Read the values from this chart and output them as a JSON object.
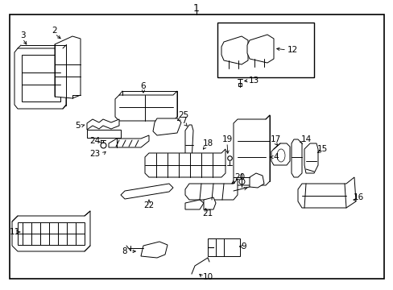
{
  "title": "1",
  "bg_color": "#ffffff",
  "line_color": "#000000",
  "text_color": "#000000",
  "fig_width": 4.89,
  "fig_height": 3.6,
  "dpi": 100,
  "border": [
    12,
    18,
    465,
    328
  ]
}
